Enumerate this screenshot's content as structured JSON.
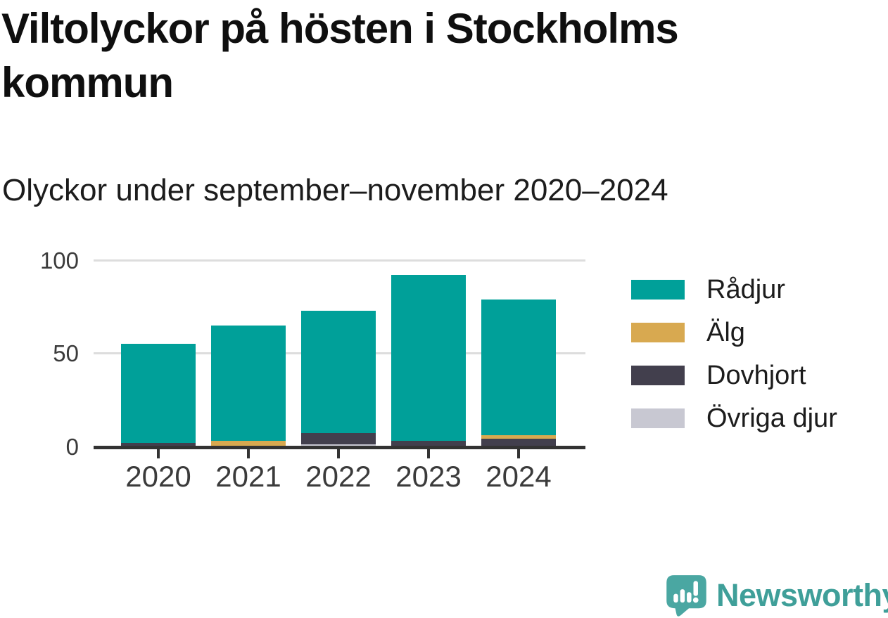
{
  "header": {
    "title_lines": [
      "Viltolyckor på hösten i Stockholms",
      "kommun"
    ],
    "subtitle": "Olyckor under september–november 2020–2024"
  },
  "footer": {
    "brand": "Newsworthy",
    "brand_color": "#3f9f99",
    "logo_color": "#4aa7a2"
  },
  "colors": {
    "grid": "#dddddd",
    "axis": "#333333",
    "axis_label": "#3b3b3b"
  },
  "chart_data": {
    "type": "bar",
    "stacked": true,
    "title": "Viltolyckor på hösten i Stockholms kommun",
    "subtitle": "Olyckor under september–november 2020–2024",
    "categories": [
      "2020",
      "2021",
      "2022",
      "2023",
      "2024"
    ],
    "series": [
      {
        "name": "Rådjur",
        "color": "#00a099",
        "values": [
          53,
          62,
          66,
          89,
          73
        ]
      },
      {
        "name": "Älg",
        "color": "#d8a950",
        "values": [
          0,
          3,
          0,
          0,
          2
        ]
      },
      {
        "name": "Dovhjort",
        "color": "#423f4d",
        "values": [
          2,
          0,
          6,
          3,
          4
        ]
      },
      {
        "name": "Övriga djur",
        "color": "#c8c8d2",
        "values": [
          0,
          0,
          1,
          0,
          0
        ]
      }
    ],
    "totals": [
      55,
      65,
      73,
      92,
      79
    ],
    "stack_order_bottom_to_top": [
      "Övriga djur",
      "Dovhjort",
      "Älg",
      "Rådjur"
    ],
    "xlabel": "",
    "ylabel": "",
    "ylim": [
      0,
      100
    ],
    "yticks": [
      0,
      50,
      100
    ],
    "grid": "horizontal",
    "legend_position": "right"
  }
}
